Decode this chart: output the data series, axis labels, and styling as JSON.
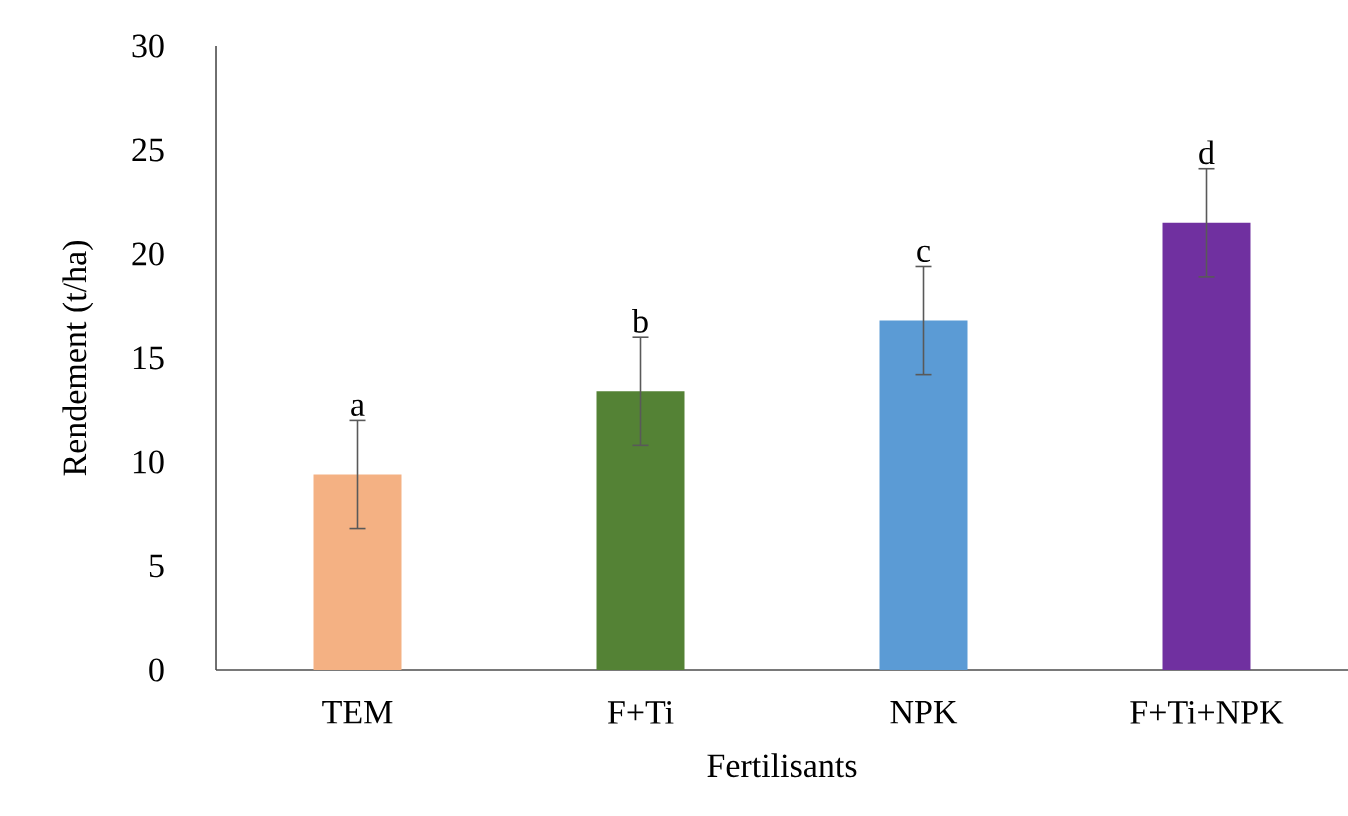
{
  "chart_data": {
    "type": "bar",
    "xlabel": "Fertilisants",
    "ylabel": "Rendement (t/ha)",
    "categories": [
      "TEM",
      "F+Ti",
      "NPK",
      "F+Ti+NPK"
    ],
    "values": [
      9.4,
      13.4,
      16.8,
      21.5
    ],
    "colors": [
      "#f4b183",
      "#548235",
      "#5b9bd5",
      "#7030a0"
    ],
    "errors": [
      2.6,
      2.6,
      2.6,
      2.6
    ],
    "ylim": [
      0,
      30
    ],
    "yticks": [
      0,
      5,
      10,
      15,
      20,
      25,
      30
    ],
    "grid": false,
    "annotations": [
      "a",
      "b",
      "c",
      "d"
    ]
  }
}
